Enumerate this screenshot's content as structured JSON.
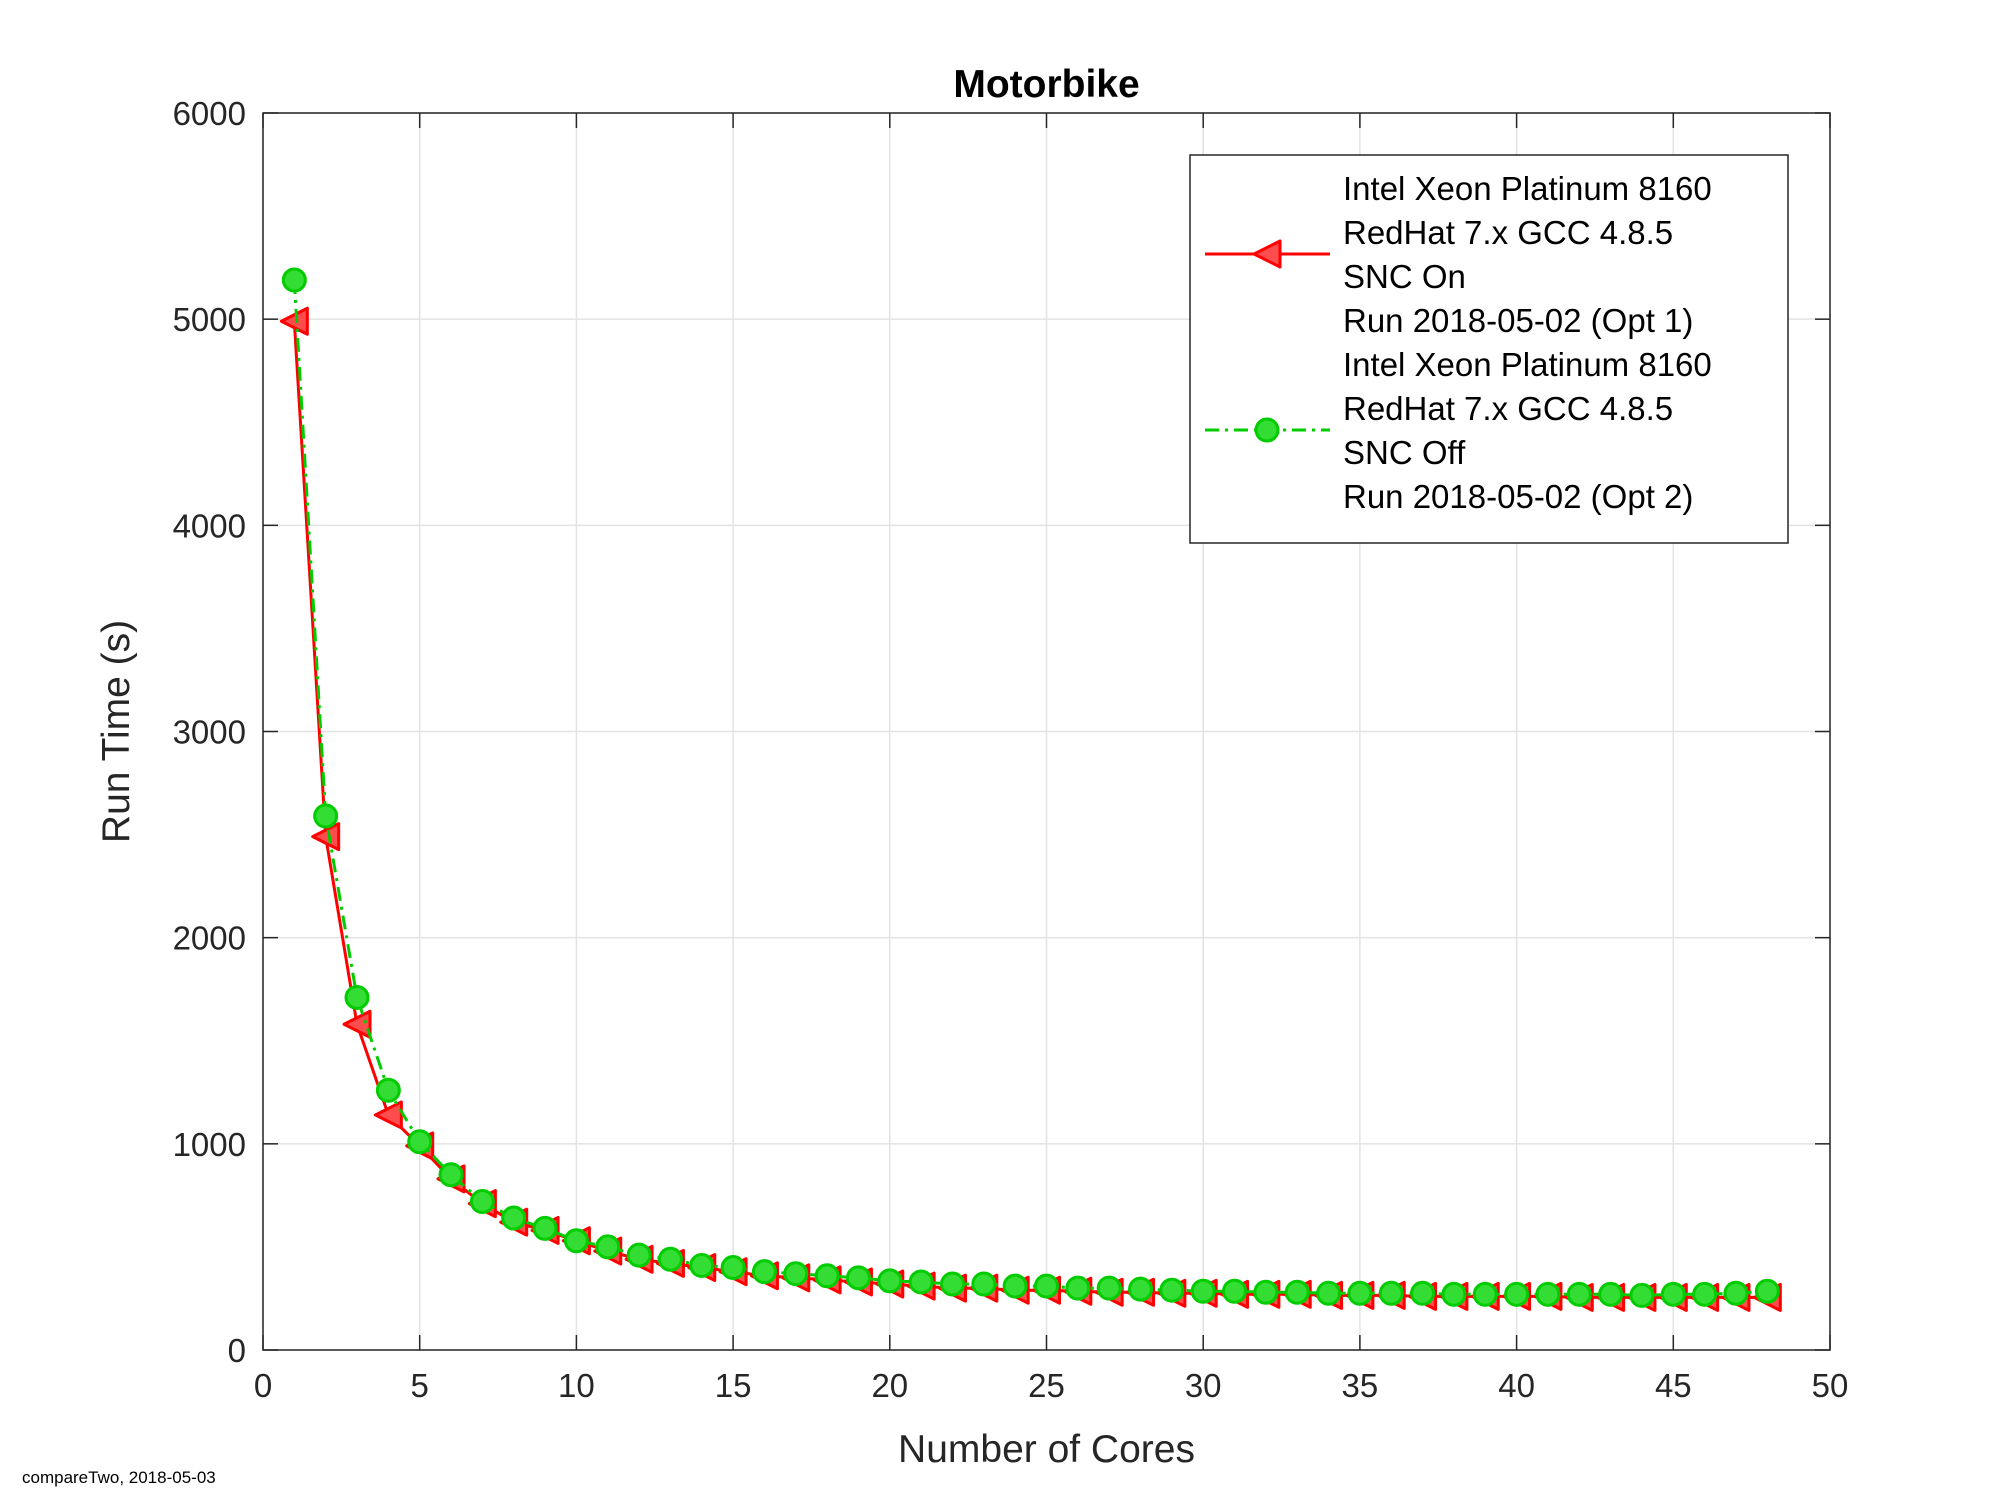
{
  "chart_data": {
    "type": "line",
    "title": "Motorbike",
    "xlabel": "Number of Cores",
    "ylabel": "Run Time (s)",
    "xlim": [
      0,
      50
    ],
    "ylim": [
      0,
      6000
    ],
    "xticks": [
      0,
      5,
      10,
      15,
      20,
      25,
      30,
      35,
      40,
      45,
      50
    ],
    "yticks": [
      0,
      1000,
      2000,
      3000,
      4000,
      5000,
      6000
    ],
    "grid": true,
    "legend_position": "top-right",
    "series": [
      {
        "name_lines": [
          "Intel Xeon Platinum 8160",
          "RedHat 7.x GCC 4.8.5",
          "SNC On",
          "Run 2018-05-02 (Opt 1)"
        ],
        "color": "#ff0000",
        "marker": "triangle-left",
        "marker_fill": "#ff4d4d",
        "line_style": "solid",
        "x": [
          1,
          2,
          3,
          4,
          5,
          6,
          7,
          8,
          9,
          10,
          11,
          12,
          13,
          14,
          15,
          16,
          17,
          18,
          19,
          20,
          21,
          22,
          23,
          24,
          25,
          26,
          27,
          28,
          29,
          30,
          31,
          32,
          33,
          34,
          35,
          36,
          37,
          38,
          39,
          40,
          41,
          42,
          43,
          44,
          45,
          46,
          47,
          48
        ],
        "y": [
          4990,
          2490,
          1580,
          1140,
          990,
          830,
          710,
          620,
          580,
          530,
          480,
          440,
          420,
          400,
          380,
          360,
          350,
          340,
          330,
          320,
          310,
          300,
          300,
          290,
          290,
          285,
          280,
          280,
          275,
          275,
          270,
          270,
          270,
          265,
          265,
          265,
          260,
          260,
          260,
          260,
          260,
          255,
          255,
          255,
          255,
          255,
          255,
          255
        ]
      },
      {
        "name_lines": [
          "Intel Xeon Platinum 8160",
          "RedHat 7.x GCC 4.8.5",
          "SNC Off",
          "Run 2018-05-02 (Opt 2)"
        ],
        "color": "#00cc00",
        "marker": "circle",
        "marker_fill": "#33dd33",
        "line_style": "dash-dot",
        "x": [
          1,
          2,
          3,
          4,
          5,
          6,
          7,
          8,
          9,
          10,
          11,
          12,
          13,
          14,
          15,
          16,
          17,
          18,
          19,
          20,
          21,
          22,
          23,
          24,
          25,
          26,
          27,
          28,
          29,
          30,
          31,
          32,
          33,
          34,
          35,
          36,
          37,
          38,
          39,
          40,
          41,
          42,
          43,
          44,
          45,
          46,
          47,
          48
        ],
        "y": [
          5190,
          2590,
          1710,
          1260,
          1010,
          850,
          720,
          640,
          590,
          530,
          500,
          460,
          440,
          410,
          400,
          380,
          370,
          360,
          350,
          335,
          330,
          320,
          320,
          310,
          310,
          300,
          300,
          295,
          290,
          285,
          285,
          280,
          280,
          275,
          275,
          275,
          275,
          270,
          270,
          270,
          270,
          270,
          270,
          265,
          270,
          270,
          275,
          285
        ]
      }
    ]
  },
  "footer": "compareTwo, 2018-05-03"
}
